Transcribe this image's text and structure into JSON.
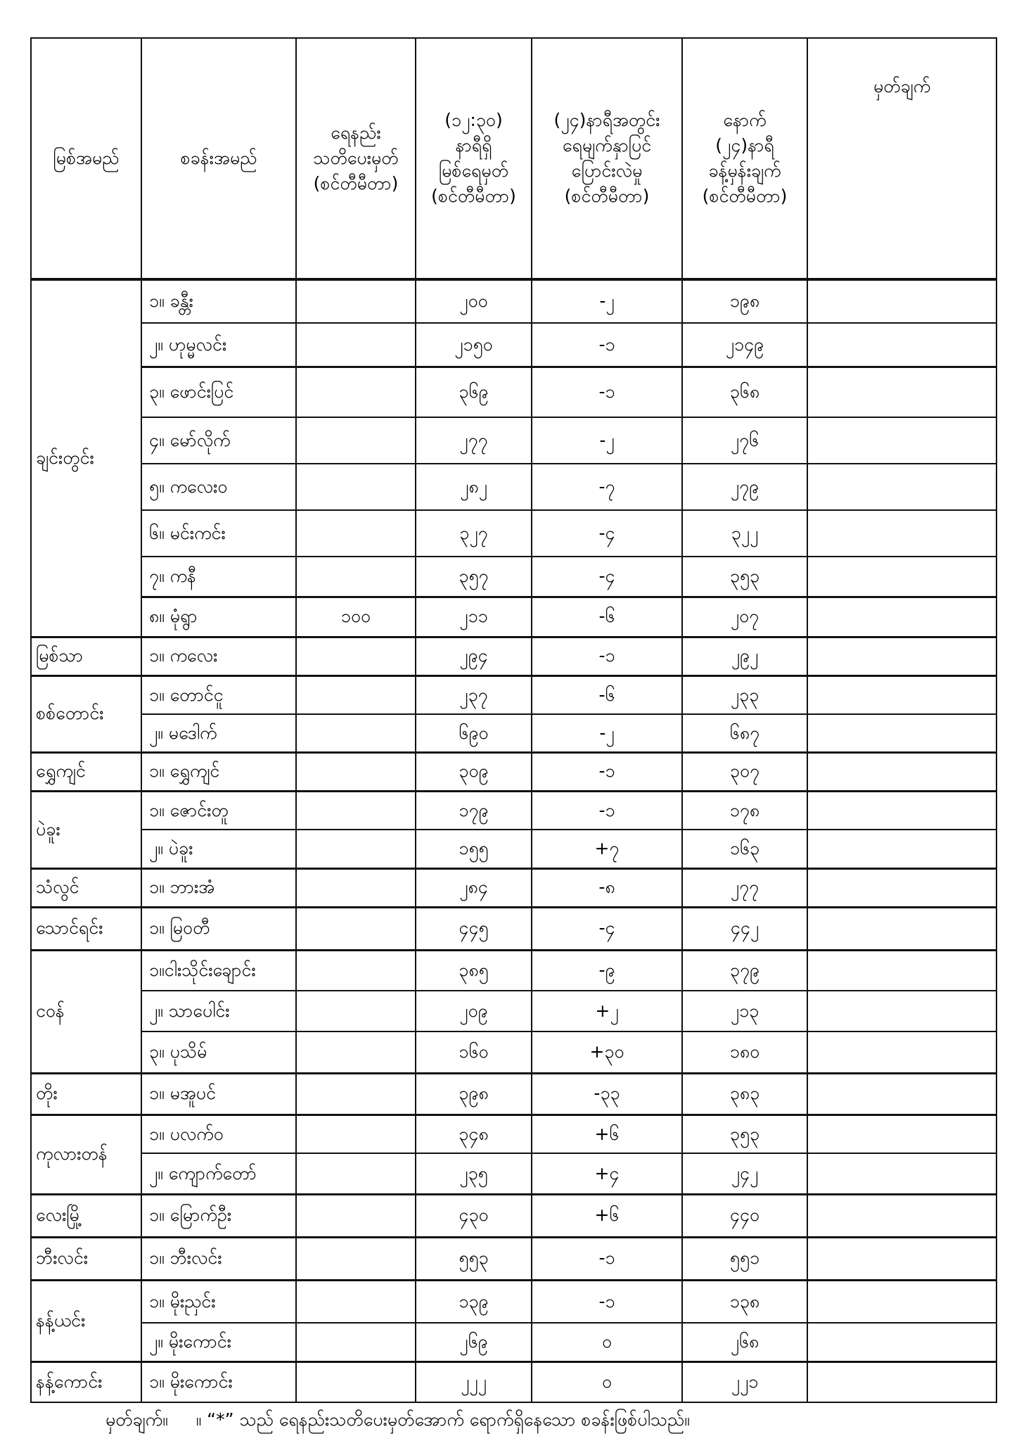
{
  "header": {
    "river": "မြစ်အမည်",
    "station": "စခန်းအမည်",
    "low_warning": [
      "ရေနည်း",
      "သတိပေးမှတ်",
      "(စင်တီမီတာ)"
    ],
    "level_now": [
      "(၁၂:၃၀)",
      "နာရီရှိ",
      "မြစ်ရေမှတ်",
      "(စင်တီမီတာ)"
    ],
    "change_24h": [
      "(၂၄)နာရီအတွင်း",
      "ရေမျက်နှာပြင်",
      "ပြောင်းလဲမှု",
      "(စင်တီမီတာ)"
    ],
    "forecast_24h": [
      "နောက်",
      "(၂၄)နာရီ",
      "ခန့်မှန်းချက်",
      "(စင်တီမီတာ)"
    ],
    "remarks": "မှတ်ချက်"
  },
  "groups": [
    {
      "river": "ချင်းတွင်း",
      "rows": [
        {
          "station": "၁။ ခန္တီး",
          "warning": "",
          "level": "၂၀၀",
          "change": "-၂",
          "forecast": "၁၉၈"
        },
        {
          "station": "၂။ ဟုမ္မလင်း",
          "warning": "",
          "level": "၂၁၅၀",
          "change": "-၁",
          "forecast": "၂၁၄၉"
        },
        {
          "station": "၃။ ဖောင်းပြင်",
          "warning": "",
          "level": "၃၆၉",
          "change": "-၁",
          "forecast": "၃၆၈"
        },
        {
          "station": "၄။ မော်လိုက်",
          "warning": "",
          "level": "၂၇၇",
          "change": "-၂",
          "forecast": "၂၇၆"
        },
        {
          "station": "၅။ ကလေးဝ",
          "warning": "",
          "level": "၂၈၂",
          "change": "-၇",
          "forecast": "၂၇၉"
        },
        {
          "station": "၆။ မင်းကင်း",
          "warning": "",
          "level": "၃၂၇",
          "change": "-၄",
          "forecast": "၃၂၂"
        },
        {
          "station": "၇။ ကနီ",
          "warning": "",
          "level": "၃၅၇",
          "change": "-၄",
          "forecast": "၃၅၃"
        },
        {
          "station": "၈။ မုံရွာ",
          "warning": "၁၀၀",
          "level": "၂၁၁",
          "change": "-၆",
          "forecast": "၂၀၇"
        }
      ]
    },
    {
      "river": "မြစ်သာ",
      "rows": [
        {
          "station": "၁။ ကလေး",
          "warning": "",
          "level": "၂၉၄",
          "change": "-၁",
          "forecast": "၂၉၂"
        }
      ]
    },
    {
      "river": "စစ်တောင်း",
      "rows": [
        {
          "station": "၁။ တောင်ငူ",
          "warning": "",
          "level": "၂၃၇",
          "change": "-၆",
          "forecast": "၂၃၃"
        },
        {
          "station": "၂။ မဒေါက်",
          "warning": "",
          "level": "၆၉၀",
          "change": "-၂",
          "forecast": "၆၈၇"
        }
      ]
    },
    {
      "river": "ရွှေကျင်",
      "rows": [
        {
          "station": "၁။ ရွှေကျင်",
          "warning": "",
          "level": "၃၀၉",
          "change": "-၁",
          "forecast": "၃၀၇"
        }
      ]
    },
    {
      "river": "ပဲခူး",
      "rows": [
        {
          "station": "၁။ ဇောင်းတူ",
          "warning": "",
          "level": "၁၇၉",
          "change": "-၁",
          "forecast": "၁၇၈"
        },
        {
          "station": "၂။ ပဲခူး",
          "warning": "",
          "level": "၁၅၅",
          "change": "+၇",
          "forecast": "၁၆၃"
        }
      ]
    },
    {
      "river": "သံလွင်",
      "rows": [
        {
          "station": "၁။ ဘားအံ",
          "warning": "",
          "level": "၂၈၄",
          "change": "-၈",
          "forecast": "၂၇၇"
        }
      ]
    },
    {
      "river": "သောင်ရင်း",
      "rows": [
        {
          "station": "၁။ မြဝတီ",
          "warning": "",
          "level": "၄၄၅",
          "change": "-၄",
          "forecast": "၄၄၂"
        }
      ]
    },
    {
      "river": "ငဝန်",
      "rows": [
        {
          "station": "၁။ငါးသိုင်းချောင်း",
          "warning": "",
          "level": "၃၈၅",
          "change": "-၉",
          "forecast": "၃၇၉"
        },
        {
          "station": "၂။ သာပေါင်း",
          "warning": "",
          "level": "၂၀၉",
          "change": "+၂",
          "forecast": "၂၁၃"
        },
        {
          "station": "၃။ ပုသိမ်",
          "warning": "",
          "level": "၁၆၀",
          "change": "+၃၀",
          "forecast": "၁၈၀"
        }
      ]
    },
    {
      "river": "တိုး",
      "rows": [
        {
          "station": "၁။ မအူပင်",
          "warning": "",
          "level": "၃၉၈",
          "change": "-၃၃",
          "forecast": "၃၈၃"
        }
      ]
    },
    {
      "river": "ကုလားတန်",
      "rows": [
        {
          "station": "၁။ ပလက်ဝ",
          "warning": "",
          "level": "၃၄၈",
          "change": "+၆",
          "forecast": "၃၅၃"
        },
        {
          "station": "၂။ ကျောက်တော်",
          "warning": "",
          "level": "၂၃၅",
          "change": "+၄",
          "forecast": "၂၄၂"
        }
      ]
    },
    {
      "river": "လေးမြို့",
      "rows": [
        {
          "station": "၁။ မြောက်ဦး",
          "warning": "",
          "level": "၄၃၀",
          "change": "+၆",
          "forecast": "၄၄၀"
        }
      ]
    },
    {
      "river": "ဘီးလင်း",
      "rows": [
        {
          "station": "၁။ ဘီးလင်း",
          "warning": "",
          "level": "၅၅၃",
          "change": "-၁",
          "forecast": "၅၅၁"
        }
      ]
    },
    {
      "river": "နန့်ယင်း",
      "rows": [
        {
          "station": "၁။ မိုးညှင်း",
          "warning": "",
          "level": "၁၃၉",
          "change": "-၁",
          "forecast": "၁၃၈"
        },
        {
          "station": "၂။ မိုးကောင်း",
          "warning": "",
          "level": "၂၆၉",
          "change": "၀",
          "forecast": "၂၆၈"
        }
      ]
    },
    {
      "river": "နန့်ကောင်း",
      "rows": [
        {
          "station": "၁။ မိုးကောင်း",
          "warning": "",
          "level": "၂၂၂",
          "change": "၀",
          "forecast": "၂၂၁"
        }
      ]
    }
  ],
  "footer": {
    "label": "မှတ်ချက်။",
    "text": "။ “*” သည် ရေနည်းသတိပေးမှတ်အောက် ရောက်ရှိနေသော စခန်းဖြစ်ပါသည်။"
  }
}
